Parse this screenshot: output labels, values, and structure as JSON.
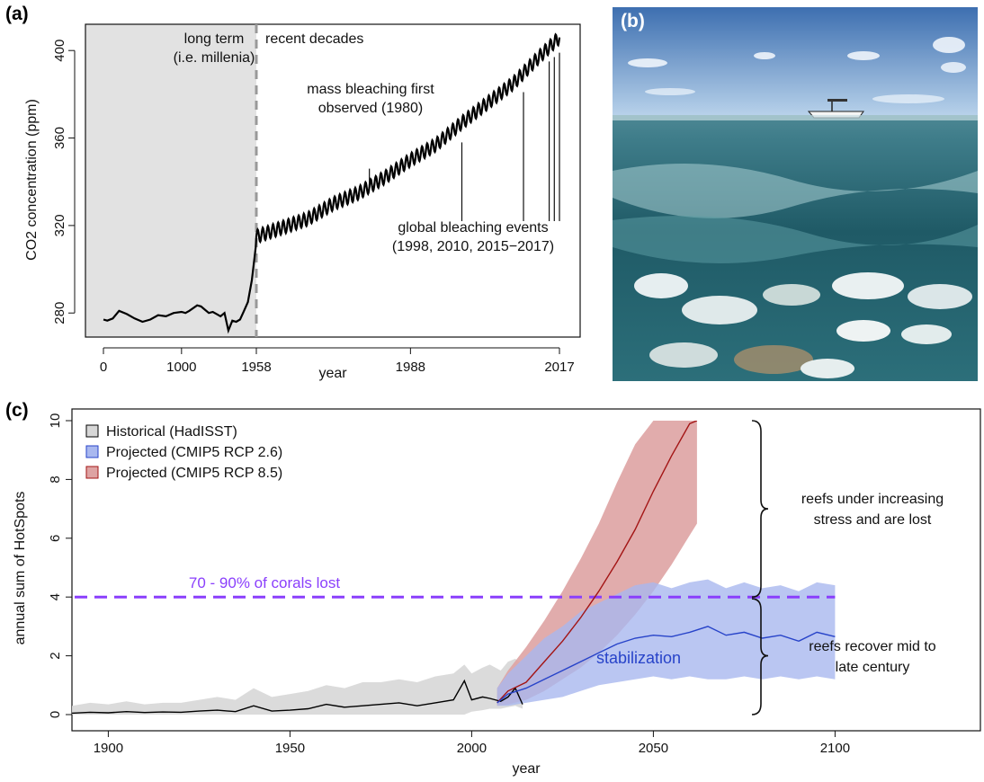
{
  "panel_labels": {
    "a": "(a)",
    "b": "(b)",
    "c": "(c)"
  },
  "photo": {
    "description_icon": "reef-photo"
  },
  "chart_data": [
    {
      "type": "line",
      "panel": "(a)",
      "xlabel": "year",
      "ylabel": "CO2 concentration (ppm)",
      "xticks": [
        "0",
        "1000",
        "1958",
        "1988",
        "2017"
      ],
      "yticks": [
        280,
        320,
        360,
        400
      ],
      "ylim": [
        269,
        412
      ],
      "regions": {
        "left": "long term\n(i.e. millenia)",
        "right": "recent decades"
      },
      "annotations": {
        "mass": [
          "mass bleaching first",
          "observed (1980)"
        ],
        "global": [
          "global bleaching events",
          "(1998, 2010, 2015−2017)"
        ]
      },
      "event_years": [
        1980,
        1998,
        2010,
        2015,
        2016,
        2017
      ],
      "series": [
        {
          "longterm": {
            "x": [
              0,
              50,
              120,
              200,
              300,
              400,
              500,
              600,
              700,
              800,
              900,
              1000,
              1050,
              1100,
              1200,
              1250,
              1300,
              1350,
              1400,
              1450,
              1500,
              1550,
              1600,
              1650,
              1700,
              1750,
              1800,
              1850,
              1900,
              1950,
              1958
            ],
            "y": [
              277,
              276.5,
              277.5,
              281,
              279.5,
              277.5,
              276,
              277,
              279,
              278.5,
              280,
              280.5,
              280,
              281,
              283.5,
              283,
              281.5,
              280,
              280.5,
              279.5,
              278.5,
              280,
              272,
              276.5,
              276,
              277,
              281,
              285,
              295,
              310,
              315
            ]
          },
          "recent": {
            "x_start": 1958,
            "x_end": 2017,
            "anchor_years": [
              1958,
              1963,
              1968,
              1973,
              1978,
              1983,
              1988,
              1993,
              1998,
              2003,
              2008,
              2013,
              2017
            ],
            "anchor_ppm": [
              315,
              319,
              323,
              330,
              335,
              342,
              350,
              357,
              367,
              376,
              385,
              397,
              406
            ],
            "seasonal_amplitude": 3
          }
        }
      ]
    },
    {
      "type": "area",
      "panel": "(c)",
      "xlabel": "year",
      "ylabel": "annual sum of HotSpots",
      "xticks": [
        1900,
        1950,
        2000,
        2050,
        2100
      ],
      "yticks": [
        0,
        2,
        4,
        6,
        8,
        10
      ],
      "xlim": [
        1890,
        2140
      ],
      "ylim": [
        0,
        10
      ],
      "threshold": {
        "value": 4,
        "label": "70 - 90% of corals lost",
        "color": "#8a3ffc"
      },
      "legend": [
        {
          "name": "Historical (HadISST)",
          "fill": "#d7d7d7",
          "stroke": "#000000"
        },
        {
          "name": "Projected (CMIP5 RCP 2.6)",
          "fill": "#a9b8ef",
          "stroke": "#2743c9"
        },
        {
          "name": "Projected (CMIP5 RCP 8.5)",
          "fill": "#dea3a3",
          "stroke": "#a31515"
        }
      ],
      "annotations": {
        "stabilization": "stabilization",
        "upper": [
          "reefs under increasing",
          "stress and are lost"
        ],
        "lower": [
          "reefs recover mid to",
          "late century"
        ]
      },
      "series": [
        {
          "name": "Historical (HadISST)",
          "x": [
            1890,
            1895,
            1900,
            1905,
            1910,
            1915,
            1920,
            1925,
            1930,
            1935,
            1940,
            1945,
            1950,
            1955,
            1960,
            1965,
            1970,
            1975,
            1980,
            1985,
            1990,
            1995,
            1998,
            2000,
            2003,
            2005,
            2008,
            2010,
            2012,
            2014
          ],
          "y": [
            0.05,
            0.08,
            0.06,
            0.1,
            0.07,
            0.09,
            0.08,
            0.12,
            0.15,
            0.1,
            0.3,
            0.12,
            0.15,
            0.2,
            0.35,
            0.25,
            0.3,
            0.35,
            0.4,
            0.3,
            0.4,
            0.5,
            1.15,
            0.5,
            0.6,
            0.55,
            0.45,
            0.6,
            0.9,
            0.35
          ],
          "upper": [
            0.3,
            0.4,
            0.35,
            0.45,
            0.35,
            0.4,
            0.4,
            0.5,
            0.6,
            0.5,
            0.9,
            0.6,
            0.7,
            0.8,
            1.0,
            0.9,
            1.1,
            1.1,
            1.2,
            1.1,
            1.3,
            1.4,
            1.7,
            1.4,
            1.6,
            1.7,
            1.5,
            1.8,
            1.9,
            1.7
          ],
          "lower": [
            0,
            0,
            0,
            0,
            0,
            0,
            0,
            0,
            0,
            0,
            0,
            0,
            0,
            0,
            0,
            0,
            0,
            0,
            0,
            0,
            0,
            0,
            0,
            0.1,
            0.15,
            0.2,
            0.2,
            0.25,
            0.3,
            0.2
          ]
        },
        {
          "name": "Projected (CMIP5 RCP 2.6)",
          "x": [
            2007,
            2010,
            2015,
            2020,
            2025,
            2030,
            2035,
            2040,
            2045,
            2050,
            2055,
            2060,
            2065,
            2070,
            2075,
            2080,
            2085,
            2090,
            2095,
            2100
          ],
          "y": [
            0.4,
            0.7,
            0.9,
            1.2,
            1.5,
            1.8,
            2.1,
            2.4,
            2.6,
            2.7,
            2.65,
            2.8,
            3.0,
            2.7,
            2.8,
            2.6,
            2.7,
            2.5,
            2.8,
            2.65
          ],
          "upper": [
            0.9,
            1.4,
            2.0,
            2.6,
            3.0,
            3.5,
            3.8,
            4.1,
            4.4,
            4.5,
            4.3,
            4.5,
            4.6,
            4.3,
            4.5,
            4.3,
            4.4,
            4.2,
            4.5,
            4.4
          ],
          "lower": [
            0.3,
            0.3,
            0.4,
            0.5,
            0.6,
            0.8,
            1.0,
            1.1,
            1.2,
            1.3,
            1.2,
            1.3,
            1.2,
            1.2,
            1.3,
            1.2,
            1.3,
            1.2,
            1.3,
            1.2
          ]
        },
        {
          "name": "Projected (CMIP5 RCP 8.5)",
          "x": [
            2007,
            2010,
            2015,
            2020,
            2025,
            2030,
            2035,
            2040,
            2045,
            2050,
            2055,
            2060,
            2062
          ],
          "y": [
            0.4,
            0.8,
            1.1,
            1.8,
            2.5,
            3.3,
            4.2,
            5.2,
            6.3,
            7.6,
            8.8,
            9.9,
            10.0
          ],
          "upper": [
            0.9,
            1.5,
            2.3,
            3.2,
            4.2,
            5.3,
            6.5,
            7.9,
            9.2,
            10.0,
            10.0,
            10.0,
            10.0
          ],
          "lower": [
            0.3,
            0.35,
            0.5,
            0.8,
            1.2,
            1.6,
            2.1,
            2.7,
            3.4,
            4.2,
            5.1,
            6.1,
            6.5
          ]
        }
      ]
    }
  ]
}
